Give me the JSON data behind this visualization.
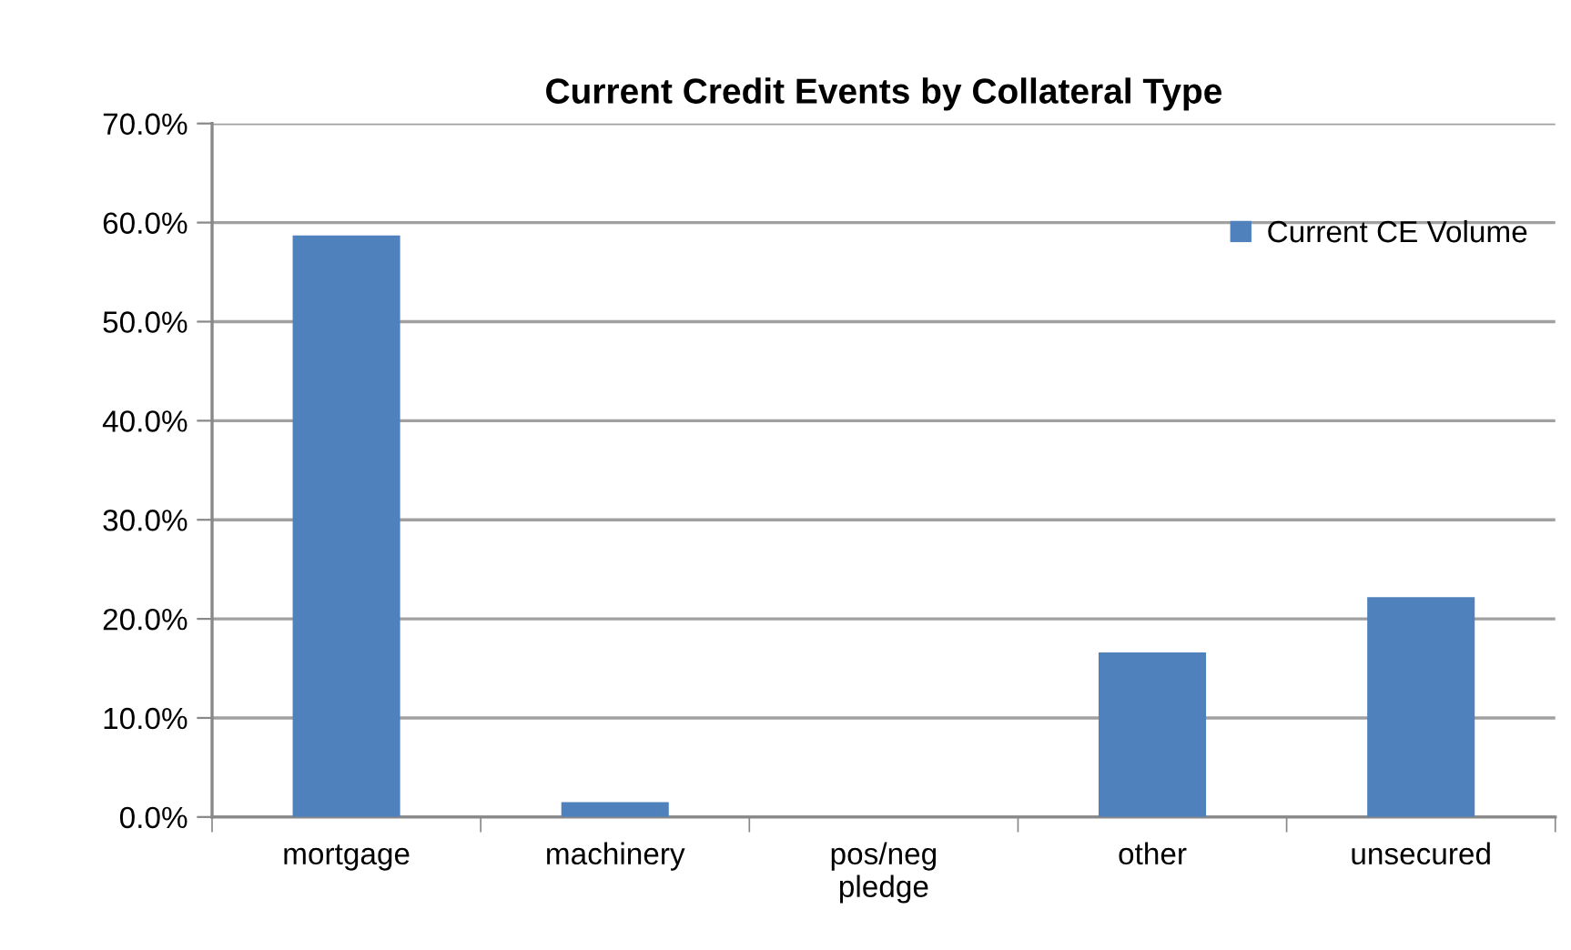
{
  "chart_data": {
    "type": "bar",
    "title": "Current Credit Events by Collateral Type",
    "categories": [
      "mortgage",
      "machinery",
      "pos/neg\npledge",
      "other",
      "unsecured"
    ],
    "series": [
      {
        "name": "Current CE Volume",
        "color": "#4f81bd",
        "values": [
          58.7,
          1.5,
          0,
          16.6,
          22.2
        ]
      }
    ],
    "ylim": [
      0,
      70
    ],
    "yticks": [
      {
        "value": 0,
        "label": "0.0%"
      },
      {
        "value": 10,
        "label": "10.0%"
      },
      {
        "value": 20,
        "label": "20.0%"
      },
      {
        "value": 30,
        "label": "30.0%"
      },
      {
        "value": 40,
        "label": "40.0%"
      },
      {
        "value": 50,
        "label": "50.0%"
      },
      {
        "value": 60,
        "label": "60.0%"
      },
      {
        "value": 70,
        "label": "70.0%"
      }
    ],
    "grid": "y",
    "legend": "top right"
  }
}
